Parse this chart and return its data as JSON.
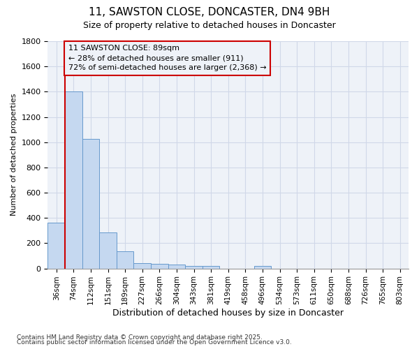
{
  "title1": "11, SAWSTON CLOSE, DONCASTER, DN4 9BH",
  "title2": "Size of property relative to detached houses in Doncaster",
  "xlabel": "Distribution of detached houses by size in Doncaster",
  "ylabel": "Number of detached properties",
  "categories": [
    "36sqm",
    "74sqm",
    "112sqm",
    "151sqm",
    "189sqm",
    "227sqm",
    "266sqm",
    "304sqm",
    "343sqm",
    "381sqm",
    "419sqm",
    "458sqm",
    "496sqm",
    "534sqm",
    "573sqm",
    "611sqm",
    "650sqm",
    "688sqm",
    "726sqm",
    "765sqm",
    "803sqm"
  ],
  "values": [
    360,
    1400,
    1025,
    285,
    135,
    40,
    35,
    30,
    20,
    20,
    0,
    0,
    20,
    0,
    0,
    0,
    0,
    0,
    0,
    0,
    0
  ],
  "bar_color": "#c5d8f0",
  "bar_edge_color": "#6699cc",
  "grid_color": "#d0d8e8",
  "red_line_x": 0.5,
  "annotation_text": "11 SAWSTON CLOSE: 89sqm\n← 28% of detached houses are smaller (911)\n72% of semi-detached houses are larger (2,368) →",
  "annotation_box_color": "#cc0000",
  "ylim": [
    0,
    1800
  ],
  "yticks": [
    0,
    200,
    400,
    600,
    800,
    1000,
    1200,
    1400,
    1600,
    1800
  ],
  "footer1": "Contains HM Land Registry data © Crown copyright and database right 2025.",
  "footer2": "Contains public sector information licensed under the Open Government Licence v3.0.",
  "background_color": "#ffffff",
  "plot_bg_color": "#eef2f8"
}
